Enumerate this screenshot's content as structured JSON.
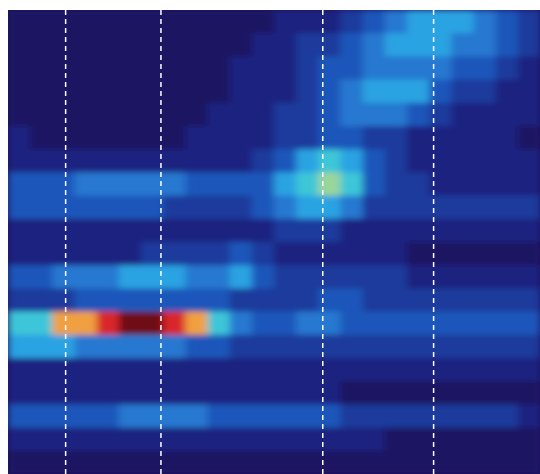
{
  "chart_data": {
    "type": "heatmap",
    "xlim": [
      0,
      24
    ],
    "ylim": [
      0,
      20
    ],
    "zlim": [
      0,
      10
    ],
    "colorscale": [
      "#1b1462",
      "#1a2480",
      "#1b3b9c",
      "#1e57ba",
      "#2578d0",
      "#2aa3e2",
      "#3cc6d8",
      "#9ad69a",
      "#f0a040",
      "#d8282a",
      "#6e0812"
    ],
    "vlines": [
      2.6,
      6.9,
      14.2,
      19.2
    ],
    "vline_color": "#ffffff",
    "z": [
      [
        0,
        0,
        0,
        0,
        0,
        0,
        0,
        0,
        0,
        0,
        0,
        0,
        1,
        1,
        1,
        2,
        3,
        4,
        5,
        5,
        5,
        4,
        3,
        2
      ],
      [
        0,
        0,
        0,
        0,
        0,
        0,
        0,
        0,
        0,
        0,
        0,
        1,
        1,
        2,
        2,
        3,
        4,
        5,
        5,
        5,
        4,
        4,
        3,
        2
      ],
      [
        0,
        0,
        0,
        0,
        0,
        0,
        0,
        0,
        0,
        0,
        1,
        1,
        1,
        2,
        3,
        3,
        4,
        4,
        4,
        4,
        3,
        3,
        2,
        1
      ],
      [
        0,
        0,
        0,
        0,
        0,
        0,
        0,
        0,
        0,
        0,
        1,
        1,
        1,
        2,
        3,
        4,
        5,
        5,
        5,
        3,
        2,
        2,
        1,
        1
      ],
      [
        0,
        0,
        0,
        0,
        0,
        0,
        0,
        0,
        0,
        1,
        1,
        1,
        2,
        2,
        3,
        4,
        4,
        4,
        3,
        2,
        1,
        1,
        1,
        1
      ],
      [
        1,
        0,
        0,
        0,
        0,
        0,
        0,
        0,
        1,
        1,
        1,
        1,
        2,
        2,
        3,
        3,
        2,
        2,
        1,
        1,
        1,
        1,
        1,
        0
      ],
      [
        1,
        1,
        1,
        1,
        1,
        1,
        1,
        1,
        1,
        1,
        1,
        2,
        3,
        5,
        6,
        5,
        3,
        2,
        1,
        1,
        1,
        1,
        1,
        1
      ],
      [
        3,
        3,
        3,
        4,
        4,
        4,
        4,
        4,
        3,
        3,
        3,
        3,
        5,
        6,
        7,
        6,
        3,
        2,
        2,
        1,
        1,
        1,
        1,
        1
      ],
      [
        3,
        3,
        3,
        3,
        3,
        3,
        3,
        2,
        2,
        2,
        2,
        3,
        4,
        5,
        5,
        4,
        2,
        2,
        2,
        2,
        2,
        2,
        2,
        2
      ],
      [
        1,
        1,
        1,
        1,
        1,
        1,
        1,
        1,
        1,
        1,
        1,
        1,
        2,
        2,
        2,
        1,
        1,
        1,
        1,
        1,
        1,
        1,
        1,
        1
      ],
      [
        1,
        1,
        1,
        1,
        1,
        1,
        2,
        2,
        2,
        2,
        3,
        2,
        1,
        1,
        1,
        1,
        1,
        1,
        0,
        0,
        0,
        0,
        0,
        0
      ],
      [
        3,
        3,
        4,
        4,
        4,
        5,
        5,
        5,
        4,
        4,
        5,
        3,
        2,
        2,
        2,
        2,
        2,
        2,
        1,
        1,
        1,
        1,
        1,
        1
      ],
      [
        2,
        2,
        2,
        3,
        3,
        3,
        3,
        3,
        3,
        3,
        2,
        2,
        2,
        2,
        3,
        3,
        2,
        2,
        2,
        2,
        2,
        2,
        2,
        2
      ],
      [
        6,
        6,
        8,
        8,
        9,
        10,
        10,
        9,
        8,
        6,
        4,
        3,
        3,
        4,
        4,
        3,
        3,
        3,
        3,
        3,
        3,
        3,
        3,
        3
      ],
      [
        5,
        5,
        5,
        4,
        4,
        4,
        4,
        4,
        3,
        3,
        2,
        2,
        2,
        2,
        2,
        2,
        2,
        2,
        2,
        2,
        2,
        2,
        2,
        2
      ],
      [
        1,
        1,
        1,
        1,
        1,
        1,
        1,
        1,
        1,
        1,
        1,
        1,
        1,
        1,
        1,
        1,
        1,
        1,
        1,
        1,
        1,
        1,
        1,
        1
      ],
      [
        1,
        1,
        1,
        1,
        1,
        1,
        1,
        1,
        1,
        1,
        1,
        1,
        1,
        1,
        1,
        0,
        0,
        0,
        0,
        0,
        0,
        0,
        0,
        0
      ],
      [
        3,
        3,
        3,
        3,
        3,
        4,
        4,
        4,
        4,
        3,
        3,
        3,
        3,
        3,
        3,
        2,
        2,
        2,
        2,
        2,
        2,
        2,
        2,
        1
      ],
      [
        1,
        1,
        1,
        1,
        1,
        1,
        1,
        1,
        1,
        1,
        1,
        1,
        1,
        1,
        1,
        1,
        1,
        0,
        0,
        0,
        0,
        0,
        0,
        0
      ],
      [
        0,
        0,
        0,
        0,
        0,
        0,
        0,
        0,
        0,
        0,
        0,
        0,
        0,
        0,
        0,
        0,
        0,
        0,
        0,
        0,
        0,
        0,
        0,
        0
      ]
    ]
  }
}
